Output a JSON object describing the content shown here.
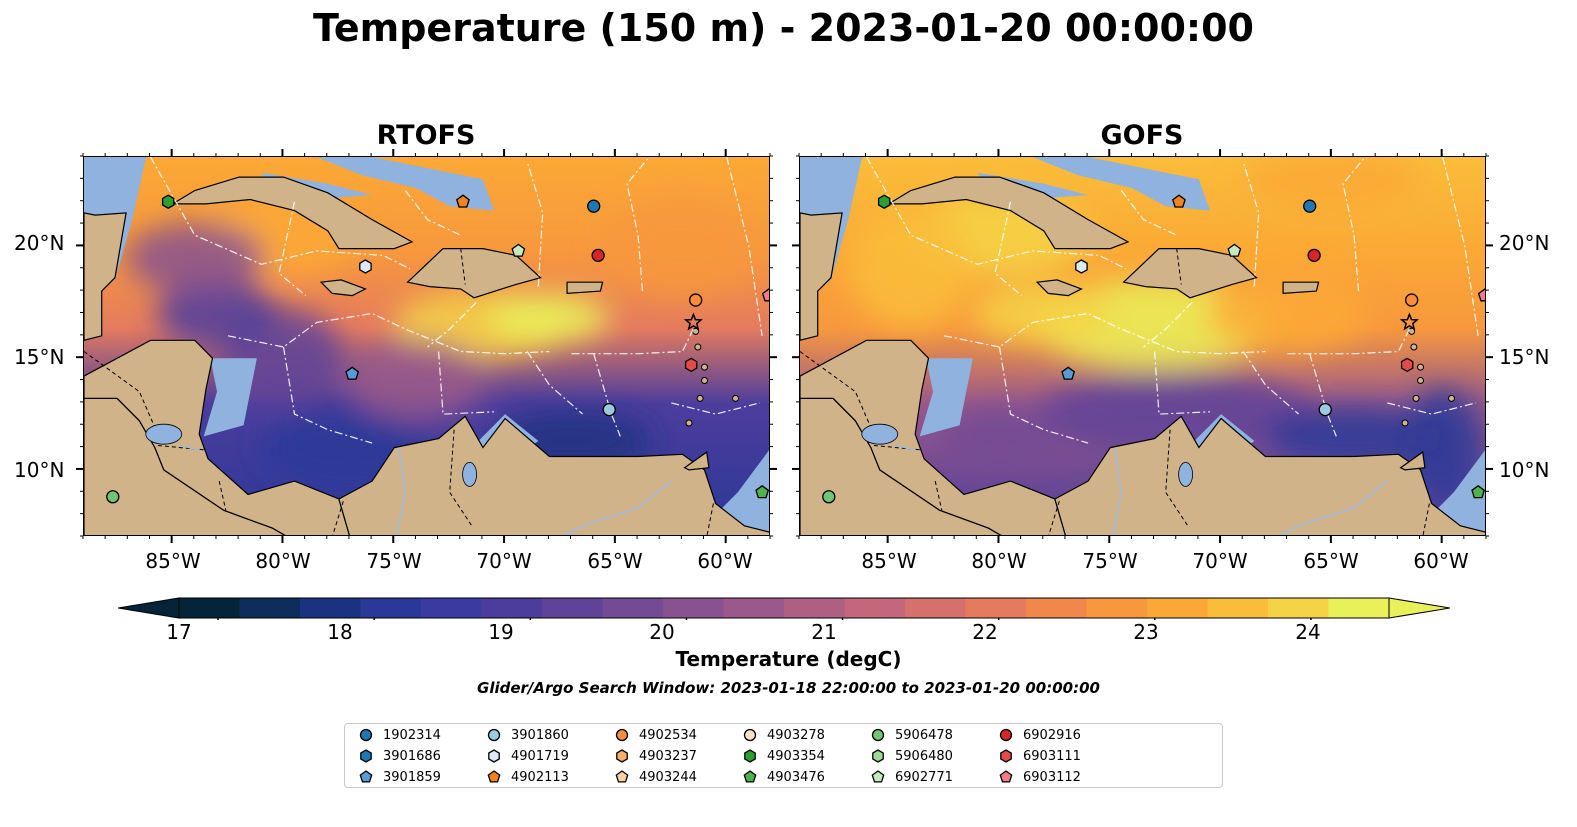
{
  "title": "Temperature (150 m) - 2023-01-20 00:00:00",
  "panels": [
    {
      "title": "RTOFS",
      "id": "rtofs"
    },
    {
      "title": "GOFS",
      "id": "gofs"
    }
  ],
  "lon_ticks": [
    "85°W",
    "80°W",
    "75°W",
    "70°W",
    "65°W",
    "60°W"
  ],
  "lat_ticks": [
    "20°N",
    "15°N",
    "10°N"
  ],
  "colorbar": {
    "title": "Temperature (degC)",
    "ticks": [
      "17",
      "18",
      "19",
      "20",
      "21",
      "22",
      "23",
      "24"
    ],
    "range": [
      16.75,
      24.5
    ],
    "extend": "both",
    "colors": [
      "#05243a",
      "#0f2d5a",
      "#1c3280",
      "#2a3898",
      "#3a3aa0",
      "#4c3d9d",
      "#5f4398",
      "#734b94",
      "#87528f",
      "#9a598a",
      "#ae6084",
      "#c2687a",
      "#d4706d",
      "#e47b5e",
      "#f0884d",
      "#f7983d",
      "#fba936",
      "#fabd39",
      "#f4d447",
      "#e9f15a"
    ]
  },
  "search_window": "Glider/Argo Search Window: 2023-01-18 22:00:00 to 2023-01-20 00:00:00",
  "legend": [
    {
      "id": "1902314",
      "shape": "circle",
      "color": "#1f77b4"
    },
    {
      "id": "3901686",
      "shape": "hexagon",
      "color": "#1f77b4"
    },
    {
      "id": "3901859",
      "shape": "pentagon",
      "color": "#5b9bd5"
    },
    {
      "id": "3901860",
      "shape": "circle",
      "color": "#9ecae1"
    },
    {
      "id": "4901719",
      "shape": "hexagon",
      "color": "#dbeaf6"
    },
    {
      "id": "4902113",
      "shape": "pentagon",
      "color": "#f28320"
    },
    {
      "id": "4902534",
      "shape": "circle",
      "color": "#fd8d3c"
    },
    {
      "id": "4903237",
      "shape": "hexagon",
      "color": "#fdae6b"
    },
    {
      "id": "4903244",
      "shape": "pentagon",
      "color": "#fdd0a2"
    },
    {
      "id": "4903278",
      "shape": "circle",
      "color": "#fde0c8"
    },
    {
      "id": "4903354",
      "shape": "hexagon",
      "color": "#2ca02c"
    },
    {
      "id": "4903476",
      "shape": "pentagon",
      "color": "#4db34d"
    },
    {
      "id": "5906478",
      "shape": "circle",
      "color": "#74c476"
    },
    {
      "id": "5906480",
      "shape": "hexagon",
      "color": "#a1d99b"
    },
    {
      "id": "6902771",
      "shape": "pentagon",
      "color": "#c7e9c0"
    },
    {
      "id": "6902916",
      "shape": "circle",
      "color": "#d62728"
    },
    {
      "id": "6903111",
      "shape": "hexagon",
      "color": "#e34a4a"
    },
    {
      "id": "6903112",
      "shape": "pentagon",
      "color": "#f47c8a"
    }
  ],
  "map_extent": {
    "lon": [
      -89,
      -58
    ],
    "lat": [
      7,
      24
    ]
  },
  "floats": [
    {
      "id": "5906478",
      "lon": -87.7,
      "lat": 8.8
    },
    {
      "id": "4903476",
      "lon": -58.4,
      "lat": 9.0
    },
    {
      "id": "4903354",
      "lon": -85.2,
      "lat": 22.0
    },
    {
      "id": "4902113",
      "lon": -71.9,
      "lat": 22.0
    },
    {
      "id": "1902314",
      "lon": -66.0,
      "lat": 21.8
    },
    {
      "id": "6902771",
      "lon": -69.4,
      "lat": 19.8
    },
    {
      "id": "6902916",
      "lon": -65.8,
      "lat": 19.6
    },
    {
      "id": "4901719",
      "lon": -76.3,
      "lat": 19.1
    },
    {
      "id": "4902534",
      "lon": -61.4,
      "lat": 17.6
    },
    {
      "id": "6903112",
      "lon": -58.1,
      "lat": 17.8
    },
    {
      "id": "6903111",
      "lon": -61.6,
      "lat": 14.7
    },
    {
      "id": "3901859",
      "lon": -76.9,
      "lat": 14.3
    },
    {
      "id": "3901860",
      "lon": -65.3,
      "lat": 12.7
    }
  ]
}
